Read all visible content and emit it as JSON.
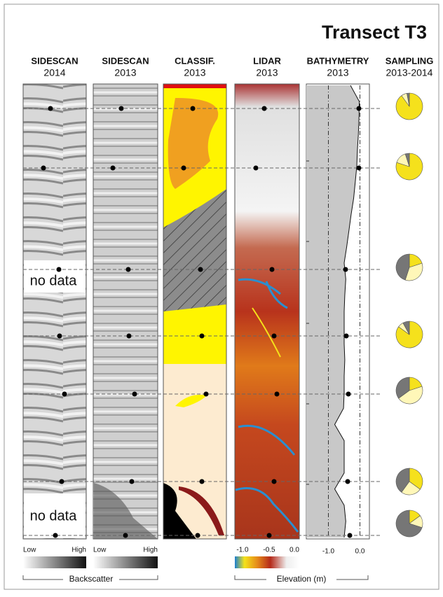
{
  "title": "Transect T3",
  "columns": [
    {
      "name": "SIDESCAN",
      "year": "2014"
    },
    {
      "name": "SIDESCAN",
      "year": "2013"
    },
    {
      "name": "CLASSIF.",
      "year": "2013"
    },
    {
      "name": "LIDAR",
      "year": "2013"
    },
    {
      "name": "BATHYMETRY",
      "year": "2013"
    },
    {
      "name": "SAMPLING",
      "year": "2013-2014"
    }
  ],
  "no_data": [
    "no data",
    "no data"
  ],
  "backscatter_legend": {
    "low": [
      "Low",
      "Low"
    ],
    "high": [
      "High",
      "High"
    ],
    "label": "Backscatter"
  },
  "elevation_legend": {
    "ticks": [
      "-1.0",
      "-0.5",
      "0.0"
    ],
    "label": "Elevation (m)"
  },
  "bathymetry": {
    "xticks": [
      "-1.0",
      "0.0"
    ],
    "xlim": [
      -1.7,
      0.3
    ],
    "profile": [
      -0.3,
      -0.02,
      -0.03,
      -0.05,
      -0.08,
      -0.1,
      -0.15,
      -0.2,
      -0.28,
      -0.35,
      -0.42,
      -0.5,
      -0.45,
      -0.48,
      -0.5,
      -0.5,
      -0.5,
      -0.48,
      -0.5,
      -0.5,
      -0.52,
      -0.8,
      -0.5,
      -0.5,
      -0.5,
      -0.8,
      -0.5,
      -0.45,
      -0.5
    ],
    "color": "#c8c8c8"
  },
  "sampling": {
    "colors": [
      "#f5e11c",
      "#fff7b8",
      "#767676"
    ],
    "pies": [
      {
        "values": [
          90,
          7,
          3
        ]
      },
      {
        "values": [
          80,
          15,
          5
        ]
      },
      {
        "values": [
          20,
          35,
          45
        ]
      },
      {
        "values": [
          85,
          7,
          8
        ]
      },
      {
        "values": [
          20,
          45,
          35
        ]
      },
      {
        "values": [
          35,
          25,
          40
        ]
      },
      {
        "values": [
          15,
          15,
          70
        ]
      }
    ]
  }
}
